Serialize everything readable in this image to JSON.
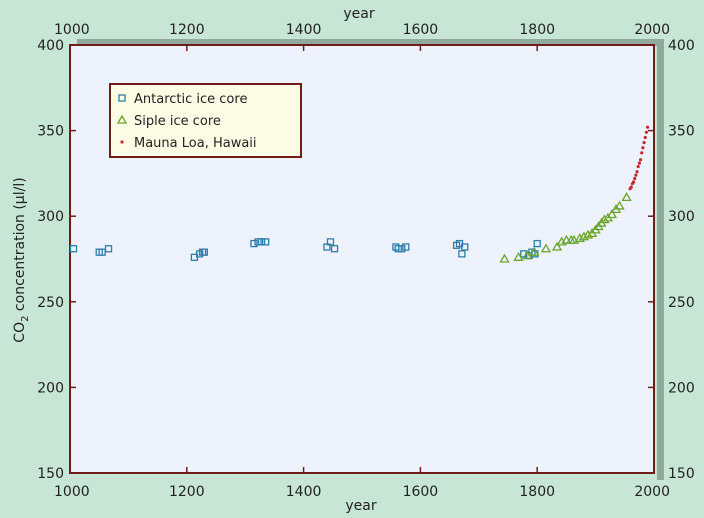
{
  "chart_data": {
    "type": "scatter",
    "xlabel": "year",
    "ylabel_main": "CO",
    "ylabel_sub": "2",
    "ylabel_rest": " concentration (μl/l)",
    "xlim": [
      1000,
      2000
    ],
    "ylim": [
      150,
      400
    ],
    "xticks": [
      1000,
      1200,
      1400,
      1600,
      1800,
      2000
    ],
    "yticks": [
      150,
      200,
      250,
      300,
      350,
      400
    ],
    "legend_position": "top-left",
    "series": [
      {
        "name": "Antarctic ice core",
        "marker": "square",
        "color": "#2a7fa8",
        "points": [
          [
            1006,
            281
          ],
          [
            1050,
            279
          ],
          [
            1055,
            279
          ],
          [
            1066,
            281
          ],
          [
            1213,
            276
          ],
          [
            1222,
            278
          ],
          [
            1227,
            279
          ],
          [
            1230,
            279
          ],
          [
            1315,
            284
          ],
          [
            1322,
            285
          ],
          [
            1328,
            285
          ],
          [
            1335,
            285
          ],
          [
            1440,
            282
          ],
          [
            1446,
            285
          ],
          [
            1453,
            281
          ],
          [
            1558,
            282
          ],
          [
            1562,
            281
          ],
          [
            1568,
            281
          ],
          [
            1575,
            282
          ],
          [
            1662,
            283
          ],
          [
            1667,
            284
          ],
          [
            1671,
            278
          ],
          [
            1676,
            282
          ],
          [
            1777,
            278
          ],
          [
            1786,
            277
          ],
          [
            1791,
            279
          ],
          [
            1796,
            278
          ],
          [
            1800,
            284
          ]
        ]
      },
      {
        "name": "Siple ice core",
        "marker": "triangle",
        "color": "#6aa52a",
        "points": [
          [
            1744,
            275
          ],
          [
            1768,
            276
          ],
          [
            1783,
            277
          ],
          [
            1795,
            279
          ],
          [
            1815,
            281
          ],
          [
            1834,
            282
          ],
          [
            1842,
            285
          ],
          [
            1850,
            286
          ],
          [
            1858,
            286
          ],
          [
            1863,
            286
          ],
          [
            1873,
            287
          ],
          [
            1880,
            288
          ],
          [
            1887,
            289
          ],
          [
            1894,
            290
          ],
          [
            1900,
            292
          ],
          [
            1905,
            294
          ],
          [
            1910,
            296
          ],
          [
            1915,
            298
          ],
          [
            1921,
            299
          ],
          [
            1928,
            301
          ],
          [
            1935,
            304
          ],
          [
            1941,
            306
          ],
          [
            1953,
            311
          ]
        ]
      },
      {
        "name": "Mauna Loa, Hawaii",
        "marker": "dot",
        "color": "#c8282c",
        "points": [
          [
            1959,
            316
          ],
          [
            1961,
            317
          ],
          [
            1963,
            319
          ],
          [
            1965,
            320
          ],
          [
            1967,
            322
          ],
          [
            1969,
            324
          ],
          [
            1971,
            326
          ],
          [
            1973,
            329
          ],
          [
            1975,
            331
          ],
          [
            1977,
            333
          ],
          [
            1979,
            337
          ],
          [
            1981,
            340
          ],
          [
            1983,
            343
          ],
          [
            1985,
            346
          ],
          [
            1987,
            349
          ],
          [
            1989,
            352
          ]
        ]
      }
    ]
  },
  "colors": {
    "page_bg": "#c8e6d6",
    "plot_bg": "#eef2fd",
    "frame": "#6e1c1c",
    "shadow": "#8fa99a",
    "legend_bg": "#fdfde6"
  }
}
